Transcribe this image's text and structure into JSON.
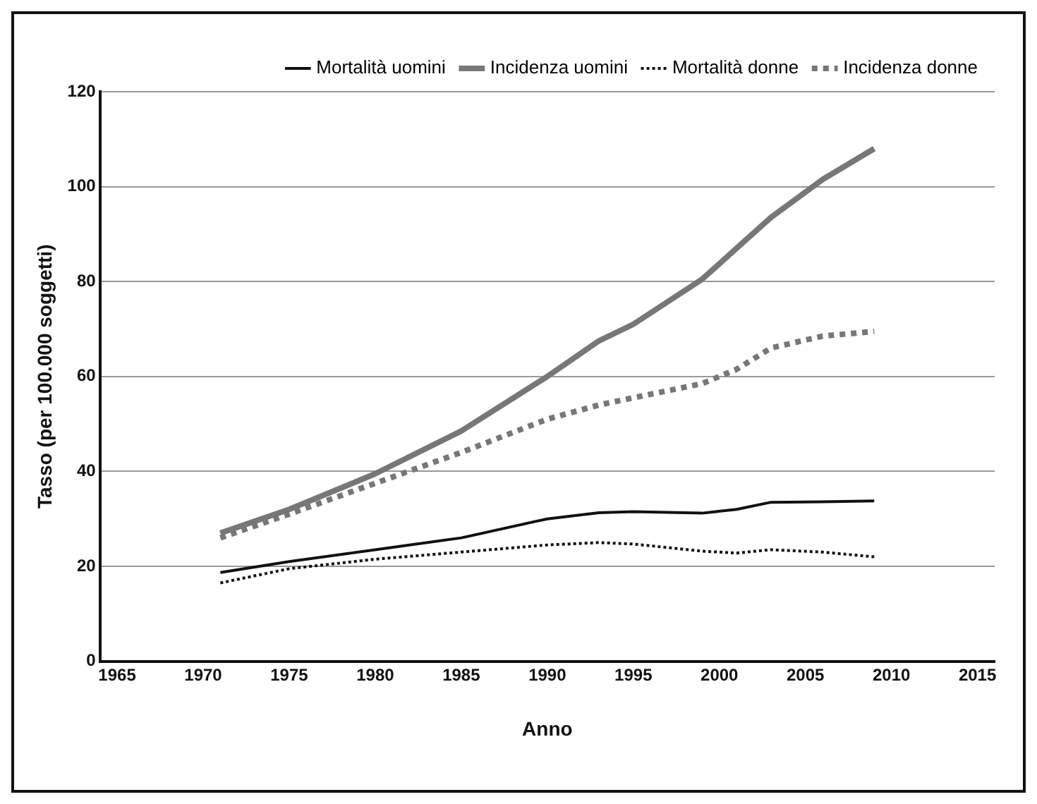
{
  "chart_data": {
    "type": "line",
    "xlabel": "Anno",
    "ylabel": "Tasso (per 100.000 soggetti)",
    "x": [
      1971,
      1975,
      1980,
      1985,
      1990,
      1993,
      1995,
      1999,
      2001,
      2003,
      2006,
      2009
    ],
    "series": [
      {
        "name": "Mortalità uomini",
        "color": "#111111",
        "line_style": "solid",
        "values": [
          18.7,
          21,
          23.5,
          26,
          30,
          31.3,
          31.5,
          31.2,
          32,
          33.5,
          33.6,
          33.8
        ]
      },
      {
        "name": "Incidenza uomini",
        "color": "#777777",
        "line_style": "solid",
        "values": [
          27,
          32,
          39.5,
          48.5,
          60,
          67.5,
          71,
          80.5,
          87,
          93.5,
          101.5,
          108
        ]
      },
      {
        "name": "Mortalità donne",
        "color": "#111111",
        "line_style": "dotted",
        "values": [
          16.5,
          19.5,
          21.5,
          23,
          24.5,
          25,
          24.7,
          23.2,
          22.8,
          23.5,
          23,
          22
        ]
      },
      {
        "name": "Incidenza donne",
        "color": "#777777",
        "line_style": "dotted",
        "values": [
          26,
          31,
          37.5,
          44,
          51,
          54,
          55.5,
          58.5,
          61.5,
          66,
          68.5,
          69.5
        ]
      }
    ],
    "xlim": [
      1964,
      2016
    ],
    "xticks": [
      1965,
      1970,
      1975,
      1980,
      1985,
      1990,
      1995,
      2000,
      2005,
      2010,
      2015
    ],
    "ylim": [
      0,
      120
    ],
    "yticks": [
      0,
      20,
      40,
      60,
      80,
      100,
      120
    ],
    "grid": "y",
    "legend": "top right",
    "marker": "none"
  }
}
